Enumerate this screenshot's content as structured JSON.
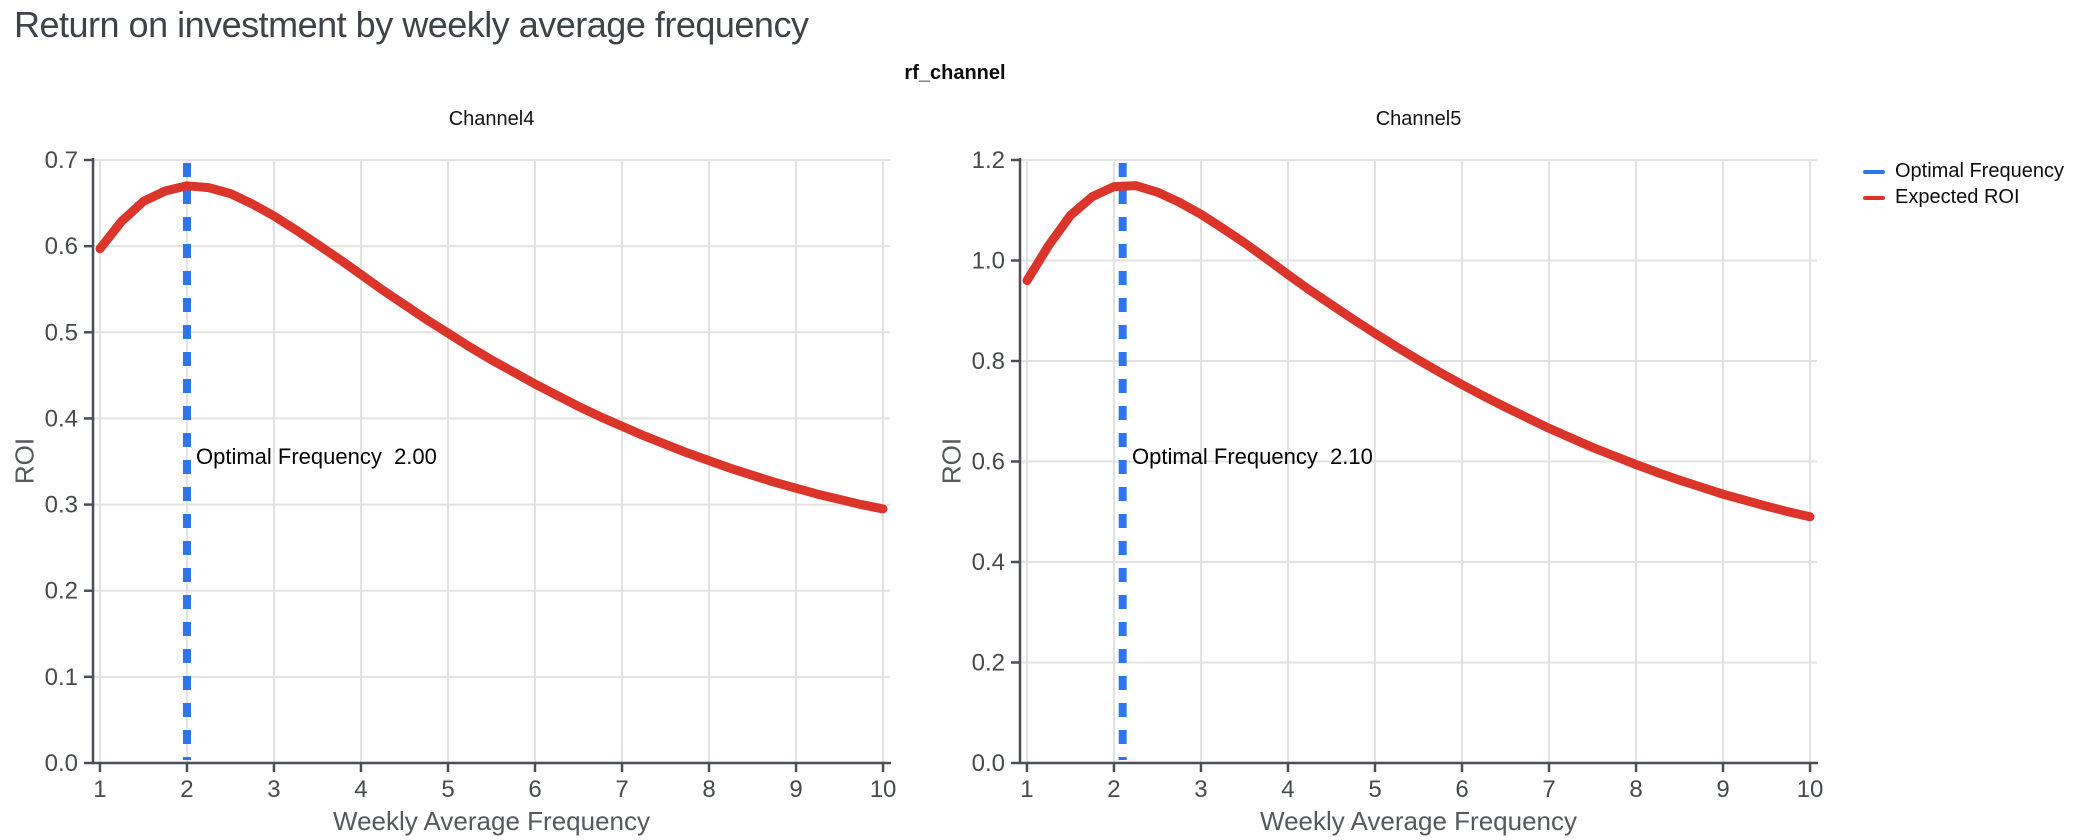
{
  "page": {
    "title": "Return on investment by weekly average frequency"
  },
  "figure": {
    "facet_label": "rf_channel",
    "legend": [
      {
        "label": "Optimal Frequency",
        "color": "#2b76ee"
      },
      {
        "label": "Expected ROI",
        "color": "#db342b"
      }
    ],
    "colors": {
      "expected_roi_line": "#db342b",
      "optimal_frequency_line": "#2b76ee",
      "gridline": "#e2e2e2",
      "axis_line": "#4a4f55",
      "tick_text": "#46494d",
      "axis_title_text": "#55595d",
      "page_title_text": "#3e4348"
    }
  },
  "chart_data": [
    {
      "type": "line",
      "title": "Channel4",
      "xlabel": "Weekly Average Frequency",
      "ylabel": "ROI",
      "legend_position": "top-right-outside",
      "grid": true,
      "xticks": [
        1,
        2,
        3,
        4,
        5,
        6,
        7,
        8,
        9,
        10
      ],
      "xlim": [
        0.92,
        10.08
      ],
      "ylim": [
        0,
        0.7
      ],
      "ytick_step": 0.1,
      "optimal_frequency": 2.0,
      "annotation": "Optimal Frequency  2.00",
      "series": [
        {
          "name": "Expected ROI",
          "x": [
            1,
            1.25,
            1.5,
            1.75,
            2,
            2.25,
            2.5,
            2.75,
            3,
            3.25,
            3.5,
            3.75,
            4,
            4.25,
            4.5,
            4.75,
            5,
            5.25,
            5.5,
            5.75,
            6,
            6.25,
            6.5,
            6.75,
            7,
            7.25,
            7.5,
            7.75,
            8,
            8.25,
            8.5,
            8.75,
            9,
            9.25,
            9.5,
            9.75,
            10
          ],
          "y": [
            0.597,
            0.629,
            0.652,
            0.664,
            0.67,
            0.668,
            0.661,
            0.649,
            0.635,
            0.619,
            0.602,
            0.585,
            0.567,
            0.549,
            0.532,
            0.515,
            0.499,
            0.483,
            0.468,
            0.454,
            0.44,
            0.427,
            0.414,
            0.402,
            0.391,
            0.38,
            0.37,
            0.36,
            0.351,
            0.342,
            0.334,
            0.326,
            0.319,
            0.312,
            0.306,
            0.3,
            0.295
          ]
        },
        {
          "name": "Optimal Frequency",
          "style": "dashed-vertical-line",
          "x_value": 2.0
        }
      ]
    },
    {
      "type": "line",
      "title": "Channel5",
      "xlabel": "Weekly Average Frequency",
      "ylabel": "ROI",
      "legend_position": "top-right-outside",
      "grid": true,
      "xticks": [
        1,
        2,
        3,
        4,
        5,
        6,
        7,
        8,
        9,
        10
      ],
      "xlim": [
        0.92,
        10.08
      ],
      "ylim": [
        0,
        1.2
      ],
      "ytick_step": 0.2,
      "optimal_frequency": 2.1,
      "annotation": "Optimal Frequency  2.10",
      "series": [
        {
          "name": "Expected ROI",
          "x": [
            1,
            1.25,
            1.5,
            1.75,
            2,
            2.25,
            2.5,
            2.75,
            3,
            3.25,
            3.5,
            3.75,
            4,
            4.25,
            4.5,
            4.75,
            5,
            5.25,
            5.5,
            5.75,
            6,
            6.25,
            6.5,
            6.75,
            7,
            7.25,
            7.5,
            7.75,
            8,
            8.25,
            8.5,
            8.75,
            9,
            9.25,
            9.5,
            9.75,
            10
          ],
          "y": [
            0.96,
            1.03,
            1.09,
            1.127,
            1.147,
            1.149,
            1.136,
            1.116,
            1.092,
            1.064,
            1.035,
            1.004,
            0.972,
            0.941,
            0.912,
            0.883,
            0.855,
            0.828,
            0.802,
            0.777,
            0.753,
            0.73,
            0.708,
            0.687,
            0.666,
            0.647,
            0.628,
            0.611,
            0.594,
            0.578,
            0.563,
            0.549,
            0.535,
            0.523,
            0.511,
            0.5,
            0.49
          ]
        },
        {
          "name": "Optimal Frequency",
          "style": "dashed-vertical-line",
          "x_value": 2.1
        }
      ]
    }
  ]
}
